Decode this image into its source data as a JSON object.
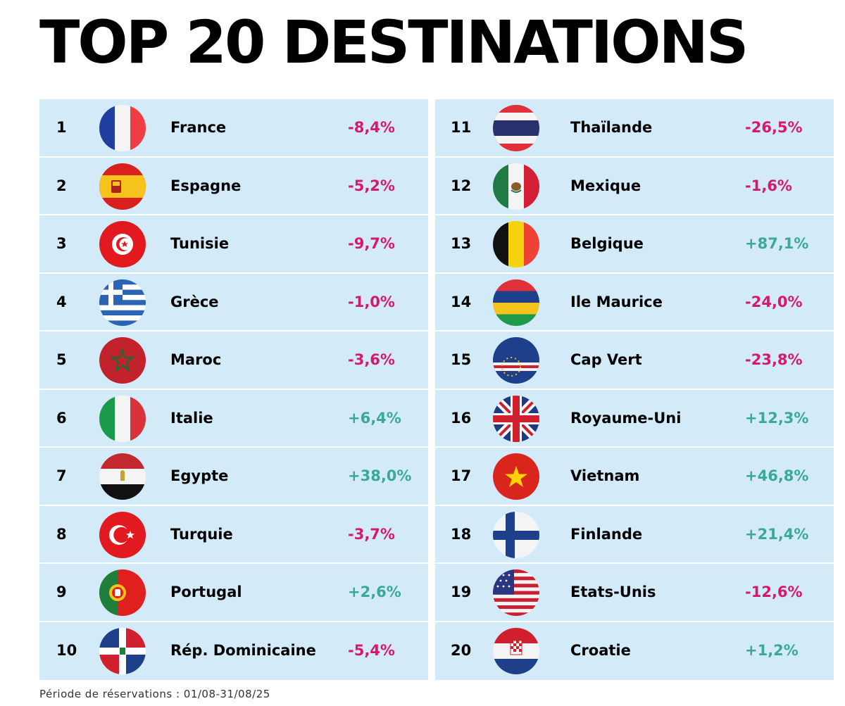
{
  "title": "TOP 20 DESTINATIONS",
  "footnote": "Période de réservations : 01/08-31/08/25",
  "colors": {
    "row_bg": "#d3ebf9",
    "negative": "#d6186e",
    "positive": "#3aa89a"
  },
  "left": [
    {
      "rank": "1",
      "name": "France",
      "change": "-8,4%",
      "flag": "france-flag-icon"
    },
    {
      "rank": "2",
      "name": "Espagne",
      "change": "-5,2%",
      "flag": "spain-flag-icon"
    },
    {
      "rank": "3",
      "name": "Tunisie",
      "change": "-9,7%",
      "flag": "tunisia-flag-icon"
    },
    {
      "rank": "4",
      "name": "Grèce",
      "change": "-1,0%",
      "flag": "greece-flag-icon"
    },
    {
      "rank": "5",
      "name": "Maroc",
      "change": "-3,6%",
      "flag": "morocco-flag-icon"
    },
    {
      "rank": "6",
      "name": "Italie",
      "change": "+6,4%",
      "flag": "italy-flag-icon"
    },
    {
      "rank": "7",
      "name": "Egypte",
      "change": "+38,0%",
      "flag": "egypt-flag-icon"
    },
    {
      "rank": "8",
      "name": "Turquie",
      "change": "-3,7%",
      "flag": "turkey-flag-icon"
    },
    {
      "rank": "9",
      "name": "Portugal",
      "change": "+2,6%",
      "flag": "portugal-flag-icon"
    },
    {
      "rank": "10",
      "name": "Rép. Dominicaine",
      "change": "-5,4%",
      "flag": "dominican-republic-flag-icon"
    }
  ],
  "right": [
    {
      "rank": "11",
      "name": "Thaïlande",
      "change": "-26,5%",
      "flag": "thailand-flag-icon"
    },
    {
      "rank": "12",
      "name": "Mexique",
      "change": "-1,6%",
      "flag": "mexico-flag-icon"
    },
    {
      "rank": "13",
      "name": "Belgique",
      "change": "+87,1%",
      "flag": "belgium-flag-icon"
    },
    {
      "rank": "14",
      "name": "Ile Maurice",
      "change": "-24,0%",
      "flag": "mauritius-flag-icon"
    },
    {
      "rank": "15",
      "name": "Cap Vert",
      "change": "-23,8%",
      "flag": "cape-verde-flag-icon"
    },
    {
      "rank": "16",
      "name": "Royaume-Uni",
      "change": "+12,3%",
      "flag": "united-kingdom-flag-icon"
    },
    {
      "rank": "17",
      "name": "Vietnam",
      "change": "+46,8%",
      "flag": "vietnam-flag-icon"
    },
    {
      "rank": "18",
      "name": "Finlande",
      "change": "+21,4%",
      "flag": "finland-flag-icon"
    },
    {
      "rank": "19",
      "name": "Etats-Unis",
      "change": "-12,6%",
      "flag": "united-states-flag-icon"
    },
    {
      "rank": "20",
      "name": "Croatie",
      "change": "+1,2%",
      "flag": "croatia-flag-icon"
    }
  ]
}
